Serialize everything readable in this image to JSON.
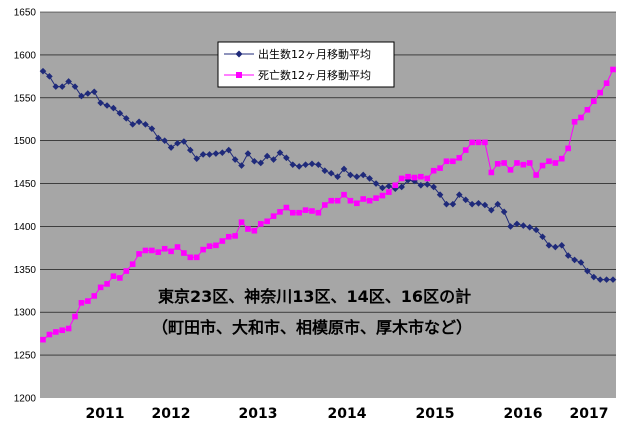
{
  "chart_data": {
    "type": "line",
    "title": "",
    "xlabel": "",
    "ylabel": "",
    "ylim": [
      1200,
      1650
    ],
    "yticks": [
      1200,
      1250,
      1300,
      1350,
      1400,
      1450,
      1500,
      1550,
      1600,
      1650
    ],
    "grid": "horizontal",
    "plot_background": "#a6a6a6",
    "legend_position": "top-left",
    "year_labels": [
      "2011",
      "2012",
      "2013",
      "2014",
      "2015",
      "2016",
      "2017"
    ],
    "annotations": [
      "東京23区、神奈川13区、14区、16区の計",
      "（町田市、大和市、相模原市、厚木市など）"
    ],
    "series": [
      {
        "name": "出生数12ヶ月移動平均",
        "color": "#1f2a7a",
        "marker": "diamond",
        "values": [
          1581,
          1575,
          1563,
          1563,
          1569,
          1563,
          1552,
          1555,
          1557,
          1544,
          1541,
          1538,
          1532,
          1526,
          1519,
          1522,
          1519,
          1514,
          1503,
          1500,
          1492,
          1497,
          1499,
          1489,
          1479,
          1484,
          1484,
          1485,
          1486,
          1489,
          1478,
          1471,
          1485,
          1476,
          1474,
          1482,
          1478,
          1486,
          1480,
          1472,
          1470,
          1472,
          1473,
          1472,
          1465,
          1462,
          1458,
          1467,
          1460,
          1458,
          1460,
          1456,
          1450,
          1445,
          1447,
          1444,
          1446,
          1454,
          1453,
          1448,
          1449,
          1446,
          1437,
          1426,
          1426,
          1437,
          1431,
          1426,
          1427,
          1425,
          1419,
          1426,
          1417,
          1400,
          1403,
          1401,
          1399,
          1396,
          1388,
          1378,
          1376,
          1378,
          1366,
          1361,
          1358,
          1348,
          1341,
          1338,
          1338,
          1338
        ]
      },
      {
        "name": "死亡数12ヶ月移動平均",
        "color": "#ff00ff",
        "marker": "square",
        "values": [
          1268,
          1274,
          1277,
          1279,
          1281,
          1295,
          1311,
          1313,
          1319,
          1329,
          1333,
          1342,
          1340,
          1348,
          1356,
          1368,
          1372,
          1372,
          1370,
          1374,
          1371,
          1376,
          1369,
          1364,
          1364,
          1373,
          1377,
          1378,
          1383,
          1388,
          1389,
          1405,
          1397,
          1395,
          1403,
          1406,
          1412,
          1417,
          1422,
          1416,
          1416,
          1419,
          1418,
          1416,
          1425,
          1430,
          1430,
          1437,
          1430,
          1427,
          1432,
          1430,
          1433,
          1436,
          1440,
          1448,
          1456,
          1458,
          1457,
          1458,
          1456,
          1465,
          1468,
          1476,
          1476,
          1480,
          1489,
          1498,
          1498,
          1498,
          1463,
          1473,
          1474,
          1466,
          1474,
          1472,
          1474,
          1460,
          1471,
          1476,
          1474,
          1479,
          1491,
          1522,
          1527,
          1536,
          1546,
          1556,
          1567,
          1583
        ]
      }
    ]
  }
}
